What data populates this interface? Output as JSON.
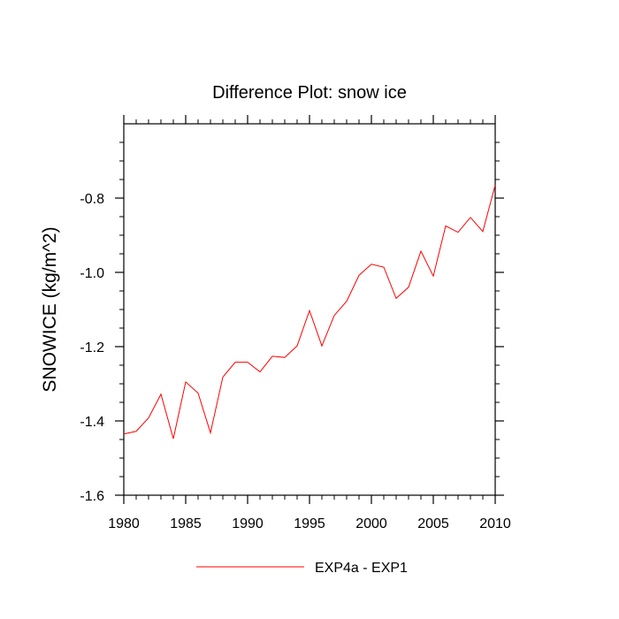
{
  "chart_data": {
    "type": "line",
    "title": "Difference Plot: snow ice",
    "xlabel": "",
    "ylabel": "SNOWICE  (kg/m^2)",
    "xlim": [
      1980,
      2010
    ],
    "ylim": [
      -1.6,
      -0.6
    ],
    "x_ticks": [
      1980,
      1985,
      1990,
      1995,
      2000,
      2005,
      2010
    ],
    "y_ticks": [
      -1.6,
      -1.4,
      -1.2,
      -1.0,
      -0.8
    ],
    "x_tick_labels": [
      "1980",
      "1985",
      "1990",
      "1995",
      "2000",
      "2005",
      "2010"
    ],
    "y_tick_labels": [
      "-1.6",
      "-1.4",
      "-1.2",
      "-1.0",
      "-0.8"
    ],
    "legend_position": "bottom-center",
    "series": [
      {
        "name": "EXP4a - EXP1",
        "color": "#ff0000",
        "x": [
          1980,
          1981,
          1982,
          1983,
          1984,
          1985,
          1986,
          1987,
          1988,
          1989,
          1990,
          1991,
          1992,
          1993,
          1994,
          1995,
          1996,
          1997,
          1998,
          1999,
          2000,
          2001,
          2002,
          2003,
          2004,
          2005,
          2006,
          2007,
          2008,
          2009,
          2010
        ],
        "values": [
          -1.435,
          -1.428,
          -1.392,
          -1.328,
          -1.448,
          -1.295,
          -1.325,
          -1.432,
          -1.282,
          -1.242,
          -1.242,
          -1.268,
          -1.226,
          -1.229,
          -1.198,
          -1.103,
          -1.198,
          -1.116,
          -1.078,
          -1.008,
          -0.978,
          -0.986,
          -1.07,
          -1.04,
          -0.943,
          -1.01,
          -0.875,
          -0.892,
          -0.852,
          -0.89,
          -0.765
        ]
      }
    ]
  }
}
